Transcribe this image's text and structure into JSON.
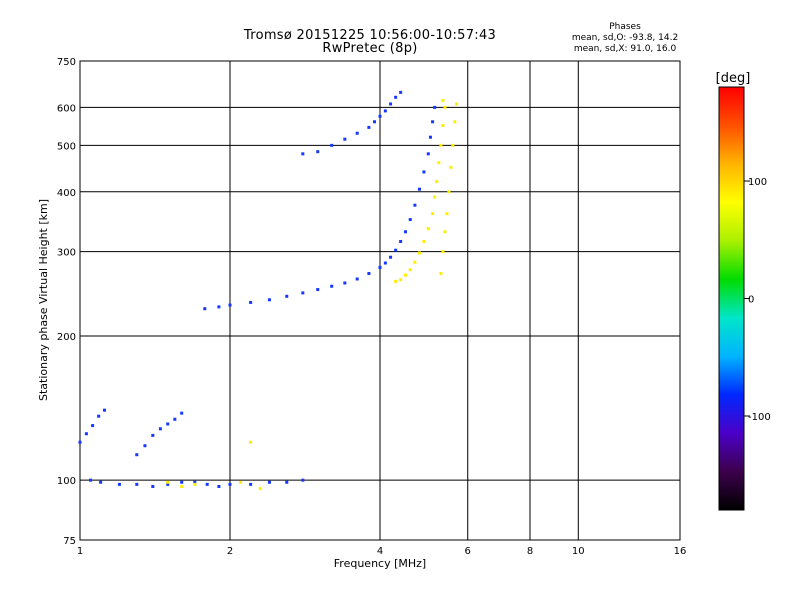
{
  "header": {
    "title": "Tromsø 20151225 10:56:00-10:57:43",
    "subtitle": "RwPretec (8p)",
    "stats_title": "Phases",
    "stats_line1": "mean, sd,O: -93.8, 14.2",
    "stats_line2": "mean, sd,X:  91.0, 16.0"
  },
  "colorbar": {
    "label": "[deg]",
    "ticks": [
      {
        "value": 100,
        "label": "100"
      },
      {
        "value": 0,
        "label": "0"
      },
      {
        "value": -100,
        "label": "-100"
      }
    ],
    "range": [
      -180,
      180
    ],
    "colors": [
      "#000000",
      "#3c004c",
      "#4b00c8",
      "#0028ff",
      "#00b4ff",
      "#00e6c8",
      "#00dc00",
      "#aaf000",
      "#ffff00",
      "#ffb400",
      "#ff5000",
      "#ff0000"
    ]
  },
  "chart_data": {
    "type": "scatter",
    "xlabel": "Frequency [MHz]",
    "ylabel": "Stationary phase Virtual Height [km]",
    "xscale": "log",
    "yscale": "log",
    "xlim": [
      1,
      16
    ],
    "ylim": [
      75,
      750
    ],
    "grid": true,
    "xticks": [
      {
        "value": 1,
        "label": "1"
      },
      {
        "value": 2,
        "label": "2"
      },
      {
        "value": 4,
        "label": "4"
      },
      {
        "value": 6,
        "label": "6"
      },
      {
        "value": 8,
        "label": "8"
      },
      {
        "value": 10,
        "label": "10"
      },
      {
        "value": 16,
        "label": "16"
      }
    ],
    "xgrid": [
      2,
      4,
      6,
      8,
      10
    ],
    "yticks": [
      {
        "value": 75,
        "label": "75"
      },
      {
        "value": 100,
        "label": "100"
      },
      {
        "value": 200,
        "label": "200"
      },
      {
        "value": 300,
        "label": "300"
      },
      {
        "value": 400,
        "label": "400"
      },
      {
        "value": 500,
        "label": "500"
      },
      {
        "value": 600,
        "label": "600"
      },
      {
        "value": 750,
        "label": "750"
      }
    ],
    "ygrid": [
      100,
      200,
      300,
      400,
      500,
      600
    ],
    "series": [
      {
        "phase": -100,
        "points": [
          [
            1.78,
            228
          ],
          [
            1.9,
            230
          ],
          [
            2.0,
            232
          ],
          [
            2.2,
            235
          ],
          [
            2.4,
            238
          ],
          [
            2.6,
            242
          ],
          [
            2.8,
            246
          ],
          [
            3.0,
            250
          ],
          [
            3.2,
            254
          ],
          [
            3.4,
            258
          ],
          [
            3.6,
            263
          ],
          [
            3.8,
            270
          ],
          [
            4.0,
            278
          ],
          [
            4.1,
            284
          ],
          [
            4.2,
            292
          ],
          [
            4.3,
            302
          ],
          [
            4.4,
            315
          ],
          [
            4.5,
            330
          ],
          [
            4.6,
            350
          ],
          [
            4.7,
            375
          ],
          [
            4.8,
            405
          ],
          [
            4.9,
            440
          ],
          [
            5.0,
            480
          ],
          [
            5.05,
            520
          ],
          [
            5.1,
            560
          ],
          [
            5.15,
            600
          ]
        ]
      },
      {
        "phase": -100,
        "points": [
          [
            2.8,
            480
          ],
          [
            3.0,
            485
          ],
          [
            3.2,
            500
          ],
          [
            3.4,
            515
          ],
          [
            3.6,
            530
          ],
          [
            3.8,
            545
          ],
          [
            3.9,
            560
          ],
          [
            4.0,
            575
          ],
          [
            4.1,
            590
          ],
          [
            4.2,
            610
          ],
          [
            4.3,
            630
          ],
          [
            4.4,
            645
          ]
        ]
      },
      {
        "phase": -100,
        "points": [
          [
            1.0,
            120
          ],
          [
            1.03,
            125
          ],
          [
            1.06,
            130
          ],
          [
            1.09,
            136
          ],
          [
            1.12,
            140
          ],
          [
            1.3,
            113
          ],
          [
            1.35,
            118
          ],
          [
            1.4,
            124
          ],
          [
            1.45,
            128
          ],
          [
            1.5,
            131
          ],
          [
            1.55,
            134
          ],
          [
            1.6,
            138
          ]
        ]
      },
      {
        "phase": -100,
        "points": [
          [
            1.05,
            100
          ],
          [
            1.1,
            99
          ],
          [
            1.2,
            98
          ],
          [
            1.3,
            98
          ],
          [
            1.4,
            97
          ],
          [
            1.5,
            98
          ],
          [
            1.6,
            99
          ],
          [
            1.7,
            99
          ],
          [
            1.8,
            98
          ],
          [
            1.9,
            97
          ],
          [
            2.0,
            98
          ],
          [
            2.2,
            98
          ],
          [
            2.4,
            99
          ],
          [
            2.6,
            99
          ],
          [
            2.8,
            100
          ]
        ]
      },
      {
        "phase": 100,
        "points": [
          [
            4.3,
            260
          ],
          [
            4.4,
            262
          ],
          [
            4.5,
            268
          ],
          [
            4.6,
            275
          ],
          [
            4.7,
            285
          ],
          [
            4.8,
            298
          ],
          [
            4.9,
            315
          ],
          [
            5.0,
            335
          ],
          [
            5.1,
            360
          ],
          [
            5.15,
            390
          ],
          [
            5.2,
            420
          ],
          [
            5.25,
            460
          ],
          [
            5.3,
            500
          ],
          [
            5.35,
            550
          ],
          [
            5.4,
            600
          ],
          [
            5.35,
            620
          ]
        ]
      },
      {
        "phase": 100,
        "points": [
          [
            5.3,
            270
          ],
          [
            5.35,
            300
          ],
          [
            5.4,
            330
          ],
          [
            5.45,
            360
          ],
          [
            5.5,
            400
          ],
          [
            5.55,
            450
          ],
          [
            5.6,
            500
          ],
          [
            5.65,
            560
          ],
          [
            5.7,
            610
          ]
        ]
      },
      {
        "phase": 100,
        "points": [
          [
            1.5,
            99
          ],
          [
            1.6,
            97
          ],
          [
            1.7,
            98
          ],
          [
            2.1,
            99
          ],
          [
            2.3,
            96
          ],
          [
            2.2,
            120
          ]
        ]
      }
    ]
  }
}
